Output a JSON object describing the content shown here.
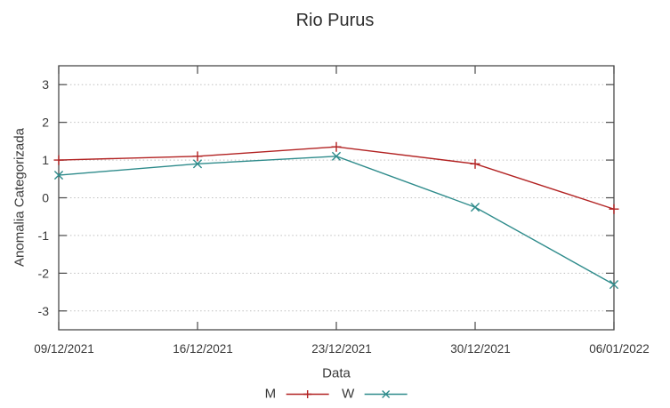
{
  "chart_data": {
    "type": "line",
    "title": "Rio Purus",
    "xlabel": "Data",
    "ylabel": "Anomalia Categorizada",
    "categories": [
      "09/12/2021",
      "16/12/2021",
      "23/12/2021",
      "30/12/2021",
      "06/01/2022"
    ],
    "series": [
      {
        "name": "M",
        "color": "#b22222",
        "marker": "plus",
        "values": [
          1.0,
          1.1,
          1.35,
          0.9,
          -0.3
        ]
      },
      {
        "name": "W",
        "color": "#2e8b8b",
        "marker": "cross",
        "values": [
          0.6,
          0.9,
          1.1,
          -0.25,
          -2.3
        ]
      }
    ],
    "ylim": [
      -3.5,
      3.5
    ],
    "yticks": [
      -3,
      -2,
      -1,
      0,
      1,
      2,
      3
    ],
    "grid": "horizontal-dotted",
    "grid_color": "#bfbfbf",
    "border_color": "#4a4a4a",
    "text_color": "#383838",
    "legend_position": "bottom-center"
  }
}
